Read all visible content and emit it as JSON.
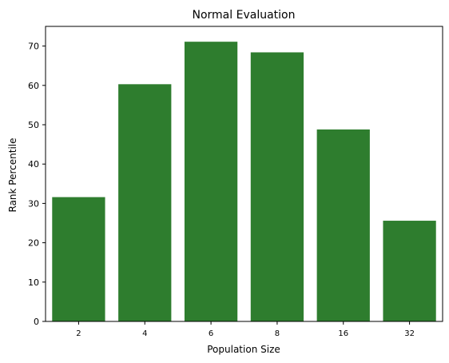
{
  "chart_data": {
    "type": "bar",
    "title": "Normal Evaluation",
    "xlabel": "Population Size",
    "ylabel": "Rank Percentile",
    "categories": [
      "2",
      "4",
      "6",
      "8",
      "16",
      "32"
    ],
    "values": [
      31.6,
      60.3,
      71.1,
      68.4,
      48.8,
      25.6
    ],
    "ylim": [
      0,
      75
    ],
    "yticks": [
      0,
      10,
      20,
      30,
      40,
      50,
      60,
      70
    ],
    "bar_color": "#2e7d2e",
    "grid": false,
    "legend": "none"
  }
}
